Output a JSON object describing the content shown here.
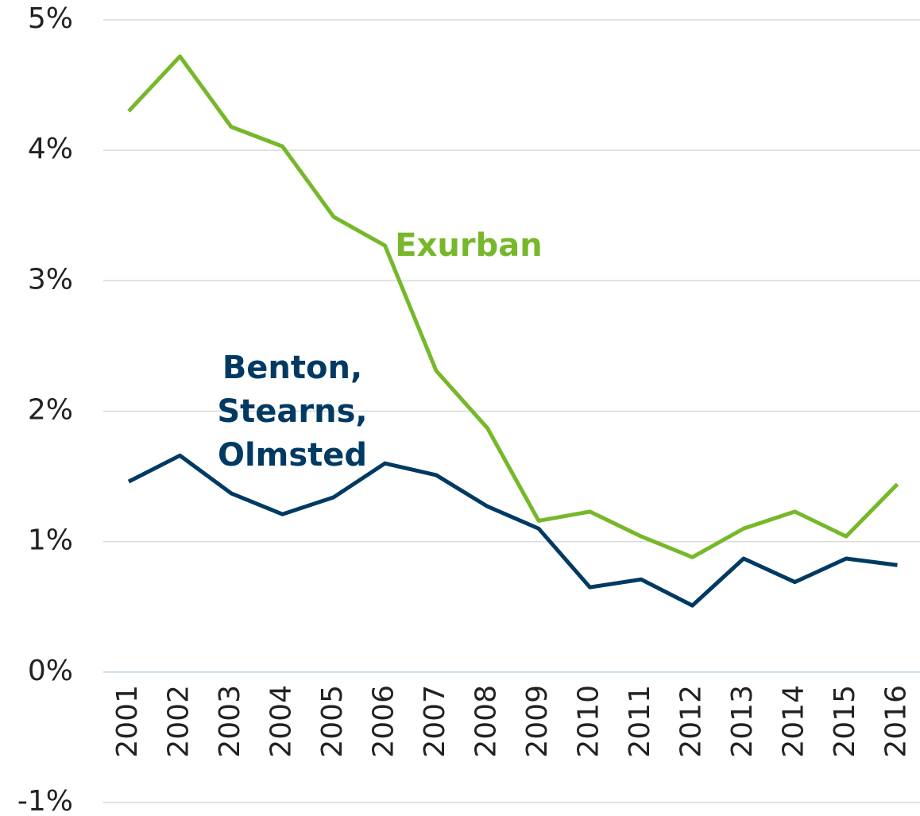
{
  "chart_data": {
    "type": "line",
    "categories": [
      "2001",
      "2002",
      "2003",
      "2004",
      "2005",
      "2006",
      "2007",
      "2008",
      "2009",
      "2010",
      "2011",
      "2012",
      "2013",
      "2014",
      "2015",
      "2016"
    ],
    "series": [
      {
        "name": "Exurban",
        "color": "#76b82a",
        "values": [
          4.3,
          4.72,
          4.18,
          4.03,
          3.49,
          3.27,
          2.31,
          1.87,
          1.16,
          1.23,
          1.04,
          0.88,
          1.1,
          1.23,
          1.04,
          1.44
        ]
      },
      {
        "name": "Benton, Stearns, Olmsted",
        "color": "#003a63",
        "values": [
          1.46,
          1.66,
          1.37,
          1.21,
          1.34,
          1.6,
          1.51,
          1.27,
          1.1,
          0.65,
          0.71,
          0.51,
          0.87,
          0.69,
          0.87,
          0.82
        ]
      }
    ],
    "ylim": [
      -1,
      5
    ],
    "yticks": [
      {
        "value": -1,
        "label": "-1%"
      },
      {
        "value": 0,
        "label": "0%"
      },
      {
        "value": 1,
        "label": "1%"
      },
      {
        "value": 2,
        "label": "2%"
      },
      {
        "value": 3,
        "label": "3%"
      },
      {
        "value": 4,
        "label": "4%"
      },
      {
        "value": 5,
        "label": "5%"
      }
    ],
    "grid": true
  }
}
